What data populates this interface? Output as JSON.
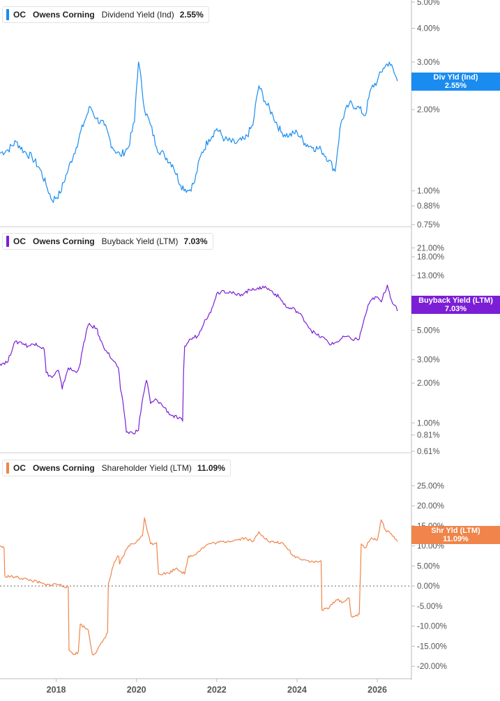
{
  "chart_data": [
    {
      "type": "line",
      "ticker": "OC",
      "company": "Owens Corning",
      "metric": "Dividend Yield (Ind)",
      "value": "2.55%",
      "flag_label": "Div Yld (Ind)",
      "flag_value": "2.55%",
      "color": "#1a8cf0",
      "scale": "log",
      "ylim": [
        0.75,
        5.0
      ],
      "yticks": [
        {
          "label": "5.00%",
          "v": 5.0
        },
        {
          "label": "4.00%",
          "v": 4.0
        },
        {
          "label": "3.00%",
          "v": 3.0
        },
        {
          "label": "2.00%",
          "v": 2.0
        },
        {
          "label": "1.00%",
          "v": 1.0
        },
        {
          "label": "0.88%",
          "v": 0.88
        },
        {
          "label": "0.75%",
          "v": 0.75
        }
      ],
      "x": [
        2016.6,
        2016.8,
        2017.0,
        2017.2,
        2017.4,
        2017.6,
        2017.75,
        2017.9,
        2018.1,
        2018.3,
        2018.5,
        2018.7,
        2018.85,
        2019.0,
        2019.2,
        2019.4,
        2019.6,
        2019.8,
        2019.95,
        2020.05,
        2020.2,
        2020.35,
        2020.5,
        2020.7,
        2020.9,
        2021.1,
        2021.3,
        2021.45,
        2021.6,
        2021.8,
        2022.0,
        2022.2,
        2022.45,
        2022.7,
        2022.9,
        2023.05,
        2023.2,
        2023.4,
        2023.6,
        2023.8,
        2024.0,
        2024.2,
        2024.4,
        2024.6,
        2024.8,
        2024.95,
        2025.1,
        2025.3,
        2025.5,
        2025.7,
        2025.85,
        2026.0,
        2026.15,
        2026.3,
        2026.5
      ],
      "y": [
        1.38,
        1.42,
        1.52,
        1.4,
        1.33,
        1.2,
        1.05,
        0.92,
        0.98,
        1.2,
        1.45,
        1.8,
        2.05,
        1.85,
        1.75,
        1.45,
        1.35,
        1.45,
        1.8,
        3.0,
        2.0,
        1.75,
        1.45,
        1.35,
        1.25,
        1.05,
        1.0,
        1.08,
        1.35,
        1.55,
        1.7,
        1.55,
        1.5,
        1.55,
        1.75,
        2.45,
        2.15,
        1.9,
        1.65,
        1.6,
        1.65,
        1.5,
        1.45,
        1.42,
        1.3,
        1.18,
        1.8,
        2.1,
        2.05,
        1.9,
        2.4,
        2.55,
        2.85,
        3.0,
        2.55
      ]
    },
    {
      "type": "line",
      "ticker": "OC",
      "company": "Owens Corning",
      "metric": "Buyback Yield (LTM)",
      "value": "7.03%",
      "flag_label": "Buyback Yield (LTM)",
      "flag_value": "7.03%",
      "color": "#7b1fd6",
      "scale": "log",
      "ylim": [
        0.61,
        25.0
      ],
      "yticks": [
        {
          "label": "21.00%",
          "v": 21.0
        },
        {
          "label": "18.00%",
          "v": 18.0
        },
        {
          "label": "13.00%",
          "v": 13.0
        },
        {
          "label": "5.00%",
          "v": 5.0
        },
        {
          "label": "3.00%",
          "v": 3.0
        },
        {
          "label": "2.00%",
          "v": 2.0
        },
        {
          "label": "1.00%",
          "v": 1.0
        },
        {
          "label": "0.81%",
          "v": 0.81
        },
        {
          "label": "0.61%",
          "v": 0.61
        }
      ],
      "x": [
        2016.6,
        2016.8,
        2016.95,
        2017.1,
        2017.3,
        2017.5,
        2017.7,
        2017.75,
        2017.9,
        2018.05,
        2018.15,
        2018.3,
        2018.5,
        2018.6,
        2018.8,
        2019.0,
        2019.1,
        2019.25,
        2019.4,
        2019.55,
        2019.6,
        2019.75,
        2019.9,
        2020.05,
        2020.25,
        2020.35,
        2020.5,
        2020.7,
        2020.85,
        2021.05,
        2021.15,
        2021.2,
        2021.35,
        2021.55,
        2021.7,
        2021.85,
        2022.0,
        2022.15,
        2022.35,
        2022.5,
        2022.7,
        2022.9,
        2023.05,
        2023.15,
        2023.35,
        2023.55,
        2023.75,
        2023.95,
        2024.15,
        2024.35,
        2024.5,
        2024.7,
        2024.85,
        2025.0,
        2025.2,
        2025.35,
        2025.55,
        2025.65,
        2025.8,
        2025.95,
        2026.1,
        2026.25,
        2026.35,
        2026.5
      ],
      "y": [
        2.8,
        2.9,
        4.0,
        4.1,
        3.8,
        4.0,
        3.6,
        2.4,
        2.2,
        2.5,
        1.8,
        2.6,
        2.4,
        2.8,
        5.5,
        5.2,
        4.2,
        3.5,
        3.0,
        2.6,
        1.8,
        0.85,
        0.84,
        0.88,
        2.1,
        1.4,
        1.5,
        1.3,
        1.15,
        1.08,
        1.03,
        3.8,
        4.3,
        4.6,
        6.0,
        6.8,
        9.5,
        10.0,
        9.7,
        9.2,
        9.6,
        10.4,
        10.2,
        10.8,
        10.0,
        8.9,
        7.4,
        7.2,
        6.2,
        5.0,
        4.6,
        4.3,
        3.9,
        4.1,
        4.5,
        4.3,
        4.3,
        5.7,
        8.0,
        9.0,
        8.2,
        11.0,
        8.5,
        7.0
      ]
    },
    {
      "type": "line",
      "ticker": "OC",
      "company": "Owens Corning",
      "metric": "Shareholder Yield (LTM)",
      "value": "11.09%",
      "flag_label": "Shr Yld (LTM)",
      "flag_value": "11.09%",
      "color": "#f0844a",
      "scale": "linear",
      "ylim": [
        -21.0,
        28.0
      ],
      "reference_line": 0,
      "yticks": [
        {
          "label": "25.00%",
          "v": 25
        },
        {
          "label": "20.00%",
          "v": 20
        },
        {
          "label": "15.00%",
          "v": 15
        },
        {
          "label": "10.00%",
          "v": 10
        },
        {
          "label": "5.00%",
          "v": 5
        },
        {
          "label": "0.00%",
          "v": 0
        },
        {
          "label": "-5.00%",
          "v": -5
        },
        {
          "label": "-10.00%",
          "v": -10
        },
        {
          "label": "-15.00%",
          "v": -15
        },
        {
          "label": "-20.00%",
          "v": -20
        }
      ],
      "x": [
        2016.6,
        2016.7,
        2016.72,
        2017.0,
        2017.3,
        2017.6,
        2017.75,
        2018.0,
        2018.3,
        2018.32,
        2018.45,
        2018.55,
        2018.6,
        2018.8,
        2018.9,
        2019.0,
        2019.2,
        2019.28,
        2019.3,
        2019.45,
        2019.55,
        2019.58,
        2019.8,
        2020.0,
        2020.15,
        2020.2,
        2020.35,
        2020.5,
        2020.55,
        2020.8,
        2021.0,
        2021.2,
        2021.3,
        2021.4,
        2021.65,
        2021.8,
        2022.0,
        2022.3,
        2022.5,
        2022.7,
        2022.9,
        2023.05,
        2023.15,
        2023.3,
        2023.6,
        2023.8,
        2023.9,
        2024.05,
        2024.2,
        2024.4,
        2024.55,
        2024.6,
        2024.62,
        2024.8,
        2024.9,
        2025.0,
        2025.15,
        2025.3,
        2025.35,
        2025.5,
        2025.55,
        2025.6,
        2025.7,
        2025.85,
        2026.0,
        2026.1,
        2026.2,
        2026.35,
        2026.5
      ],
      "y": [
        10.0,
        9.5,
        2.5,
        2.2,
        1.6,
        0.8,
        0.2,
        0.5,
        -0.3,
        -16.0,
        -17.0,
        -16.5,
        -9.5,
        -11.0,
        -17.0,
        -16.5,
        -13.0,
        -11.5,
        0.5,
        6.0,
        7.5,
        5.5,
        10.0,
        11.0,
        12.5,
        17.0,
        10.5,
        10.8,
        3.0,
        3.2,
        4.5,
        3.0,
        7.5,
        7.5,
        9.5,
        10.5,
        10.8,
        11.2,
        11.5,
        12.0,
        11.0,
        13.5,
        12.5,
        11.0,
        10.8,
        9.0,
        7.5,
        7.0,
        6.5,
        6.0,
        6.0,
        6.3,
        -6.0,
        -5.5,
        -4.0,
        -3.5,
        -4.0,
        -3.0,
        -7.5,
        -7.5,
        -7.0,
        10.5,
        9.5,
        12.0,
        11.5,
        16.5,
        14.0,
        13.0,
        11.09
      ]
    }
  ],
  "x_axis": {
    "ticks": [
      {
        "label": "2018",
        "v": 2018
      },
      {
        "label": "2020",
        "v": 2020
      },
      {
        "label": "2022",
        "v": 2022
      },
      {
        "label": "2024",
        "v": 2024
      },
      {
        "label": "2026",
        "v": 2026
      }
    ]
  },
  "colors": {
    "grid": "#e5e5e5",
    "axis_text": "#555555",
    "divider": "#cccccc"
  }
}
